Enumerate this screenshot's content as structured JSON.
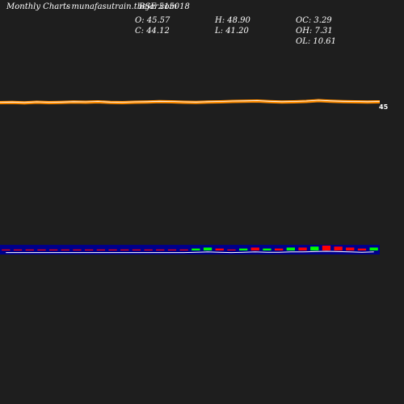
{
  "header": {
    "brand": "Monthly Charts",
    "site": "- munafasutrain.tbejar.com",
    "symbol": "BSE 515018"
  },
  "ohlc": {
    "open_label": "O: 45.57",
    "high_label": "H: 48.90",
    "oc_label": "OC: 3.29",
    "close_label": "C: 44.12",
    "low_label": "L: 41.20",
    "oh_label": "OH: 7.31",
    "ol_label": "OL: 10.61"
  },
  "colors": {
    "background": "#1e1e1e",
    "price_line": "#ff8c00",
    "volume_band": "#00008b",
    "up_candle": "#00ff00",
    "down_candle": "#ff0000",
    "indicator_line": "#ffffff"
  },
  "chart_data": {
    "type": "line",
    "price_series": {
      "values": [
        45.2,
        45.3,
        45.1,
        45.4,
        45.2,
        45.3,
        45.5,
        45.4,
        45.6,
        45.3,
        45.2,
        45.4,
        45.5,
        45.7,
        45.6,
        45.4,
        45.3,
        45.5,
        45.6,
        45.8,
        45.9,
        46.0,
        45.7,
        45.5,
        45.6,
        45.8,
        46.2,
        45.9,
        45.7,
        45.6,
        45.5,
        45.6
      ]
    },
    "volume_bars": {
      "values": [
        1,
        1,
        1,
        1,
        1,
        1,
        1,
        1,
        1,
        1,
        1,
        1,
        1,
        1,
        1,
        1,
        2,
        3,
        2,
        1,
        2,
        3,
        2,
        2,
        3,
        3,
        4,
        5,
        4,
        3,
        2,
        3
      ],
      "direction": [
        "d",
        "d",
        "d",
        "d",
        "d",
        "d",
        "d",
        "d",
        "d",
        "d",
        "d",
        "d",
        "d",
        "d",
        "d",
        "d",
        "u",
        "u",
        "d",
        "d",
        "u",
        "d",
        "u",
        "d",
        "u",
        "d",
        "u",
        "d",
        "d",
        "d",
        "d",
        "u"
      ]
    },
    "last_price_marker": "45"
  }
}
